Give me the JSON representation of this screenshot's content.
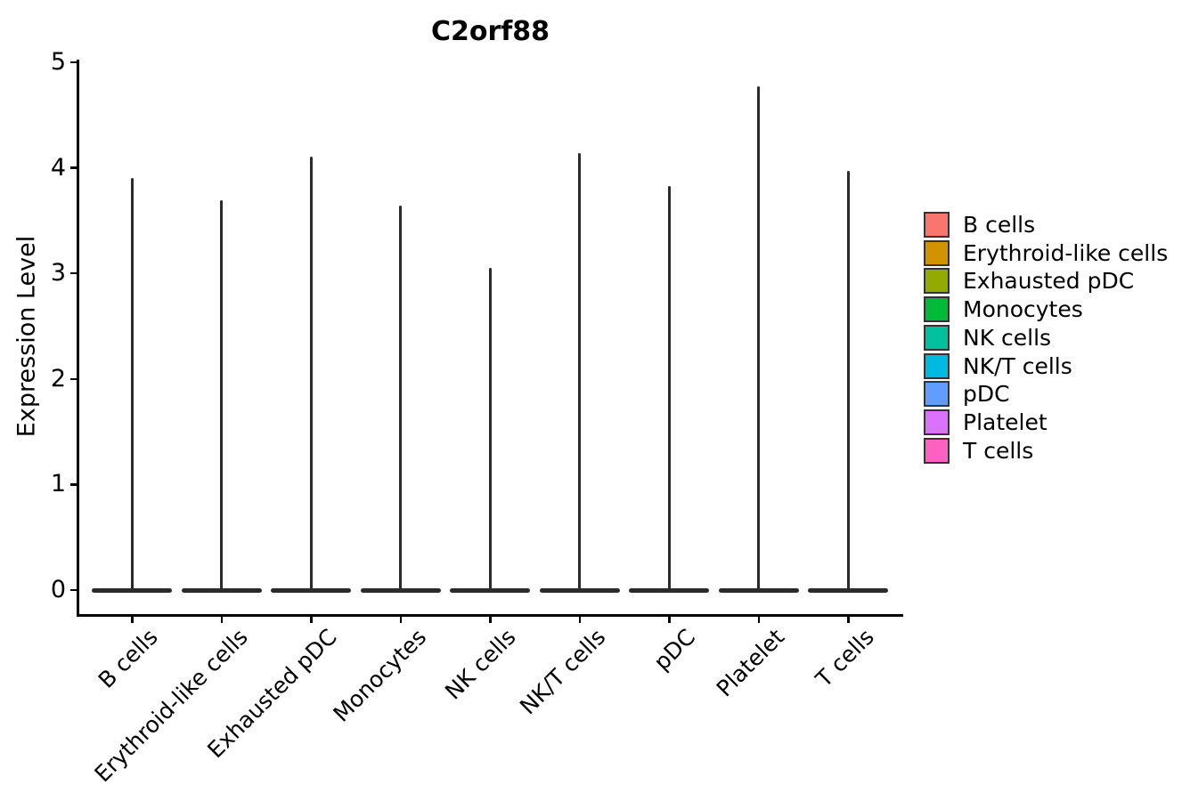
{
  "chart_data": {
    "type": "violin",
    "title": "C2orf88",
    "xlabel": "",
    "ylabel": "Expression Level",
    "ylim": [
      0,
      5
    ],
    "yticks": [
      0,
      1,
      2,
      3,
      4,
      5
    ],
    "grid": false,
    "background": "#ffffff",
    "axis_color": "#000000",
    "violin_stroke_color": "#2b2b2b",
    "shape_note": "Each violin is an extremely flat wide blob at expression 0 with a thin needle-like spike rising to the maximum expression value",
    "categories": [
      "B cells",
      "Erythroid-like cells",
      "Exhausted pDC",
      "Monocytes",
      "NK cells",
      "NK/T cells",
      "pDC",
      "Platelet",
      "T cells"
    ],
    "series": [
      {
        "name": "max_expression_spike_top",
        "values": [
          3.9,
          3.69,
          4.11,
          3.64,
          3.05,
          4.14,
          3.83,
          4.77,
          3.97
        ]
      },
      {
        "name": "bulk_expression_mode",
        "values": [
          0,
          0,
          0,
          0,
          0,
          0,
          0,
          0,
          0
        ]
      }
    ],
    "legend": {
      "position": "right",
      "entries": [
        {
          "label": "B cells",
          "color": "#F8766D"
        },
        {
          "label": "Erythroid-like cells",
          "color": "#D39200"
        },
        {
          "label": "Exhausted pDC",
          "color": "#93AA00"
        },
        {
          "label": "Monocytes",
          "color": "#00BA38"
        },
        {
          "label": "NK cells",
          "color": "#00C19F"
        },
        {
          "label": "NK/T cells",
          "color": "#00B9E3"
        },
        {
          "label": "pDC",
          "color": "#619CFF"
        },
        {
          "label": "Platelet",
          "color": "#DB72FB"
        },
        {
          "label": "T cells",
          "color": "#FF61C3"
        }
      ]
    }
  }
}
